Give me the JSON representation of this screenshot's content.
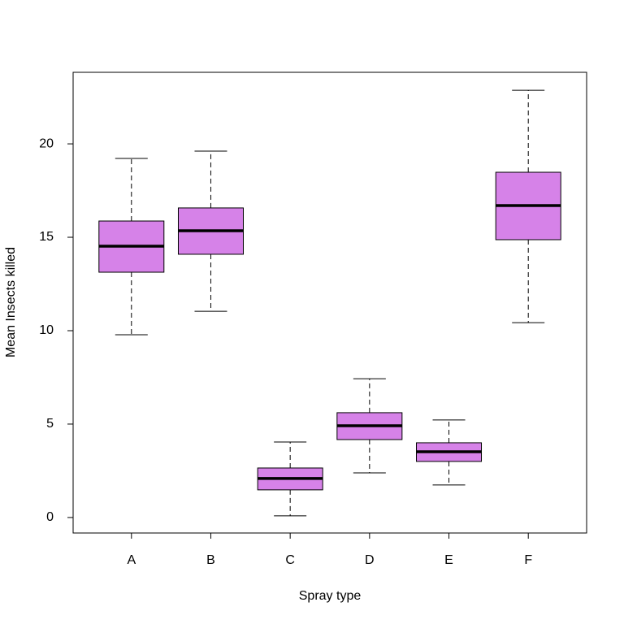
{
  "chart_data": {
    "type": "boxplot",
    "x_label": "Spray type",
    "y_label": "Mean Insects killed",
    "categories": [
      "A",
      "B",
      "C",
      "D",
      "E",
      "F"
    ],
    "color": "#d682e8",
    "boxes": [
      {
        "whisker_low": 9.78,
        "q1": 13.13,
        "median": 14.52,
        "q3": 15.87,
        "whisker_high": 19.22
      },
      {
        "whisker_low": 11.04,
        "q1": 14.09,
        "median": 15.35,
        "q3": 16.57,
        "whisker_high": 19.61
      },
      {
        "whisker_low": 0.09,
        "q1": 1.48,
        "median": 2.09,
        "q3": 2.65,
        "whisker_high": 4.04
      },
      {
        "whisker_low": 2.39,
        "q1": 4.17,
        "median": 4.91,
        "q3": 5.61,
        "whisker_high": 7.43
      },
      {
        "whisker_low": 1.74,
        "q1": 3.0,
        "median": 3.52,
        "q3": 4.0,
        "whisker_high": 5.22
      },
      {
        "whisker_low": 10.43,
        "q1": 14.87,
        "median": 16.7,
        "q3": 18.48,
        "whisker_high": 22.87
      }
    ],
    "ylim": [
      -0.83,
      23.83
    ],
    "yticks": [
      0,
      5,
      10,
      15,
      20
    ]
  }
}
